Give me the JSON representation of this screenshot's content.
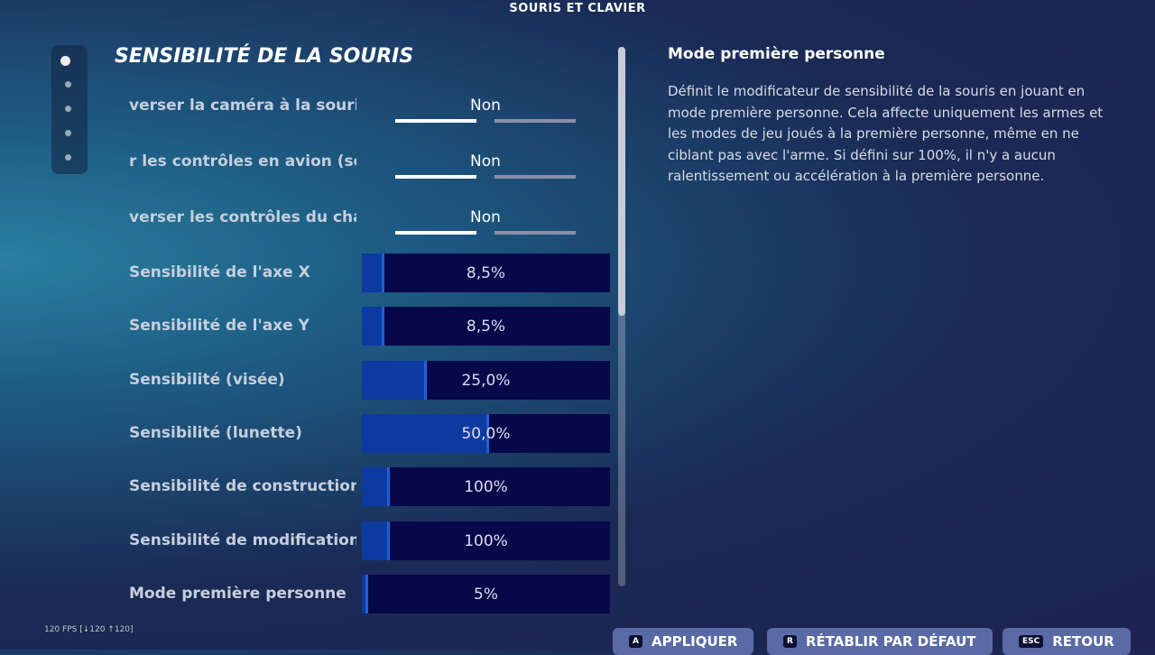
{
  "header": {
    "title": "SOURIS ET CLAVIER"
  },
  "section": {
    "title": "SENSIBILITÉ DE LA SOURIS"
  },
  "toggles": [
    {
      "label": "verser la caméra à la souris",
      "value": "Non"
    },
    {
      "label": "r les contrôles en avion (so",
      "value": "Non"
    },
    {
      "label": "verser les contrôles du cha",
      "value": "Non"
    }
  ],
  "sliders": [
    {
      "label": "Sensibilité de l'axe X",
      "value": "8,5%"
    },
    {
      "label": "Sensibilité de l'axe Y",
      "value": "8,5%"
    },
    {
      "label": "Sensibilité (visée)",
      "value": "25,0%"
    },
    {
      "label": "Sensibilité (lunette)",
      "value": "50,0%"
    },
    {
      "label": "Sensibilité de construction",
      "value": "100%"
    },
    {
      "label": "Sensibilité de modification",
      "value": "100%"
    },
    {
      "label": "Mode première personne",
      "value": "5%"
    }
  ],
  "detail": {
    "title": "Mode première personne",
    "description": "Définit le modificateur de sensibilité de la souris en jouant en mode première personne. Cela affecte uniquement les armes et les modes de jeu joués à la première personne, même en ne ciblant pas avec l'arme. Si défini sur 100%, il n'y a aucun ralentissement ou accélération à la première personne."
  },
  "footer": {
    "fps": "120 FPS [↓120 ↑120]",
    "buttons": [
      {
        "key": "A",
        "label": "APPLIQUER"
      },
      {
        "key": "R",
        "label": "RÉTABLIR PAR DÉFAUT"
      },
      {
        "key": "ESC",
        "label": "RETOUR"
      }
    ]
  }
}
